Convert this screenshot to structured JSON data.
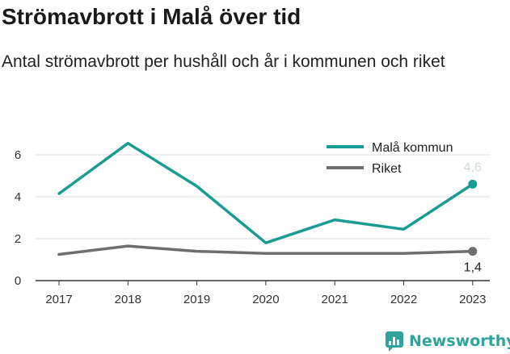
{
  "title": "Strömavbrott i Malå över tid",
  "subtitle": "Antal strömavbrott per hushåll och år i kommunen och riket",
  "brand": {
    "name": "Newsworthy"
  },
  "colors": {
    "mala": "#1a9c94",
    "riket": "#6e6e6e",
    "grid": "#dcdcdc",
    "axis": "#333333"
  },
  "chart_data": {
    "type": "line",
    "categories": [
      "2017",
      "2018",
      "2019",
      "2020",
      "2021",
      "2022",
      "2023"
    ],
    "series": [
      {
        "name": "Malå kommun",
        "values": [
          4.15,
          6.55,
          4.5,
          1.8,
          2.9,
          2.45,
          4.6
        ],
        "end_label": "4,6"
      },
      {
        "name": "Riket",
        "values": [
          1.25,
          1.65,
          1.4,
          1.3,
          1.3,
          1.3,
          1.4
        ],
        "end_label": "1,4"
      }
    ],
    "y_ticks": [
      "0",
      "2",
      "4",
      "6"
    ],
    "ylim": [
      0,
      7
    ],
    "grid": true,
    "legend": "top-right"
  }
}
